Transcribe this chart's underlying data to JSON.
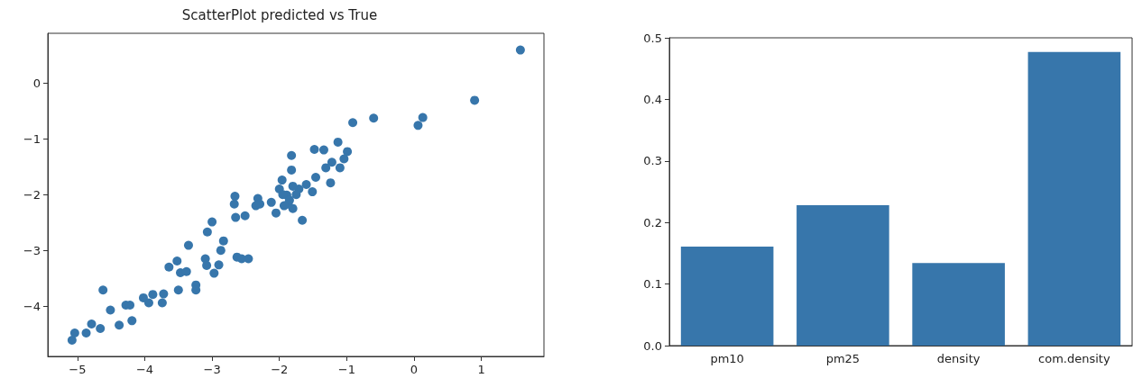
{
  "chart_data": [
    {
      "type": "scatter",
      "title": "ScatterPlot predicted vs True",
      "color": "#3776ab",
      "marker": "circle",
      "grid": false,
      "xlim": [
        -5.44,
        1.93
      ],
      "ylim": [
        -4.9,
        0.89
      ],
      "xticks": [
        {
          "value": -5,
          "label": "−5"
        },
        {
          "value": -4,
          "label": "−4"
        },
        {
          "value": -3,
          "label": "−3"
        },
        {
          "value": -2,
          "label": "−2"
        },
        {
          "value": -1,
          "label": "−1"
        },
        0,
        1
      ],
      "yticks": [
        {
          "value": -4,
          "label": "−4"
        },
        {
          "value": -3,
          "label": "−3"
        },
        {
          "value": -2,
          "label": "−2"
        },
        {
          "value": -1,
          "label": "−1"
        },
        0
      ],
      "x": [
        -5.08,
        -5.04,
        -4.87,
        -4.79,
        -4.66,
        -4.62,
        -4.51,
        -4.38,
        -4.19,
        -4.28,
        -4.22,
        -4.02,
        -3.94,
        -3.88,
        -3.74,
        -3.72,
        -3.64,
        -3.52,
        -3.47,
        -3.38,
        -3.5,
        -3.35,
        -3.24,
        -3.24,
        -3.1,
        -3.08,
        -3.07,
        -3.0,
        -2.97,
        -2.9,
        -2.87,
        -2.83,
        -2.66,
        -2.67,
        -2.65,
        -2.51,
        -2.63,
        -2.56,
        -2.46,
        -2.32,
        -2.35,
        -2.29,
        -2.12,
        -2.05,
        -1.82,
        -1.82,
        1.58,
        0.9,
        0.13,
        0.06,
        -0.6,
        -0.91,
        -1.13,
        -0.99,
        -1.04,
        -1.48,
        -1.34,
        -1.22,
        -1.31,
        -1.1,
        -1.46,
        -1.24,
        -1.6,
        -1.51,
        -1.71,
        -1.8,
        -1.96,
        -2.0,
        -1.89,
        -1.8,
        -1.66,
        -1.87,
        -1.95,
        -1.85,
        -1.93,
        -1.75
      ],
      "values": [
        -4.61,
        -4.48,
        -4.48,
        -4.32,
        -4.4,
        -3.71,
        -4.07,
        -4.34,
        -4.26,
        -3.98,
        -3.98,
        -3.85,
        -3.94,
        -3.79,
        -3.94,
        -3.78,
        -3.3,
        -3.19,
        -3.4,
        -3.38,
        -3.71,
        -2.91,
        -3.62,
        -3.71,
        -3.15,
        -3.27,
        -2.67,
        -2.49,
        -3.41,
        -3.26,
        -3.0,
        -2.83,
        -2.03,
        -2.17,
        -2.41,
        -2.38,
        -3.12,
        -3.15,
        -3.15,
        -2.07,
        -2.2,
        -2.17,
        -2.14,
        -2.33,
        -1.3,
        -1.56,
        0.59,
        -0.31,
        -0.62,
        -0.76,
        -0.63,
        -0.71,
        -1.06,
        -1.23,
        -1.36,
        -1.19,
        -1.2,
        -1.42,
        -1.52,
        -1.52,
        -1.69,
        -1.79,
        -1.82,
        -1.95,
        -1.9,
        -1.85,
        -1.74,
        -1.9,
        -2.01,
        -2.25,
        -2.46,
        -2.17,
        -2.0,
        -2.1,
        -2.2,
        -2.0
      ]
    },
    {
      "type": "bar",
      "categories": [
        "pm10",
        "pm25",
        "density",
        "com.density"
      ],
      "values": [
        0.161,
        0.228,
        0.134,
        0.477
      ],
      "color": "#3776ab",
      "grid": false,
      "ylim": [
        0,
        0.5
      ],
      "yticks": [
        {
          "value": 0,
          "label": "0.0"
        },
        0.1,
        0.2,
        0.3,
        0.4,
        0.5
      ]
    }
  ]
}
